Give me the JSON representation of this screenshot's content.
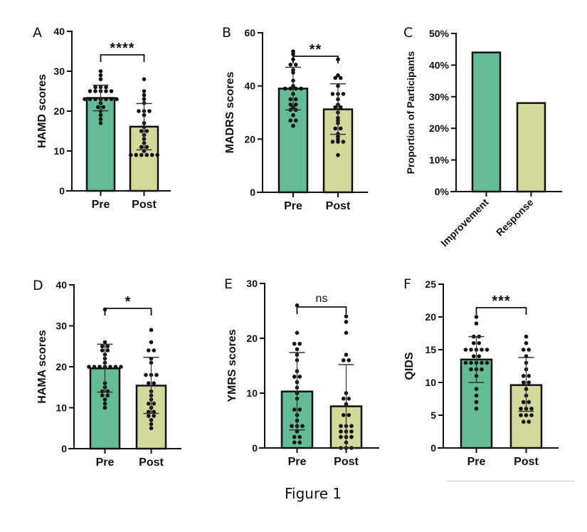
{
  "figure": {
    "caption": "Figure 1",
    "colors": {
      "pre": "#63bc95",
      "post": "#d4d89a",
      "outline": "#111111"
    }
  },
  "chart_data": [
    {
      "panel": "A",
      "type": "bar",
      "ylabel": "HAMD scores",
      "categories": [
        "Pre",
        "Post"
      ],
      "yticks": [
        0,
        10,
        20,
        30,
        40
      ],
      "ylim": [
        0,
        40
      ],
      "means": [
        23.3,
        16.1
      ],
      "sd_lower": [
        20.1,
        10.3
      ],
      "sd_upper": [
        26.5,
        21.9
      ],
      "significance": "****",
      "points": [
        [
          30,
          29,
          28,
          26,
          26,
          26,
          25,
          25,
          25,
          25,
          25,
          23,
          23,
          23,
          23,
          23,
          23,
          23,
          22,
          21,
          21,
          20,
          19,
          18,
          17
        ],
        [
          28,
          25,
          24,
          23,
          22,
          20,
          20,
          20,
          19,
          17,
          16,
          15,
          15,
          14,
          13,
          12,
          11,
          11,
          10,
          9,
          9,
          9,
          9,
          9,
          9
        ]
      ]
    },
    {
      "panel": "B",
      "type": "bar",
      "ylabel": "MADRS scores",
      "categories": [
        "Pre",
        "Post"
      ],
      "yticks": [
        0,
        20,
        40,
        60
      ],
      "ylim": [
        0,
        60
      ],
      "means": [
        39,
        31.2
      ],
      "sd_lower": [
        31,
        21.8
      ],
      "sd_upper": [
        47,
        40.8
      ],
      "significance": "**",
      "points": [
        [
          53,
          52,
          50,
          48,
          48,
          46,
          45,
          42,
          40,
          39,
          39,
          39,
          39,
          37,
          35,
          35,
          33,
          33,
          32,
          31,
          31,
          29,
          27,
          27,
          25
        ],
        [
          50,
          44,
          43,
          43,
          40,
          37,
          37,
          37,
          35,
          33,
          32,
          32,
          30,
          28,
          27,
          26,
          24,
          24,
          22,
          21,
          20,
          19,
          19,
          19,
          14
        ]
      ]
    },
    {
      "panel": "C",
      "type": "bar",
      "ylabel": "Proportion of Participants",
      "categories": [
        "Improvement",
        "Response"
      ],
      "yticks": [
        "0%",
        "10%",
        "20%",
        "30%",
        "40%",
        "50%"
      ],
      "ylim": [
        0,
        50
      ],
      "values": [
        44,
        28
      ]
    },
    {
      "panel": "D",
      "type": "bar",
      "ylabel": "HAMA scores",
      "categories": [
        "Pre",
        "Post"
      ],
      "yticks": [
        0,
        10,
        20,
        30,
        40
      ],
      "ylim": [
        0,
        40
      ],
      "means": [
        19.6,
        15.4
      ],
      "sd_lower": [
        13.8,
        8.6
      ],
      "sd_upper": [
        25.5,
        22.3
      ],
      "significance": "*",
      "points": [
        [
          34,
          26,
          25,
          25,
          24,
          24,
          23,
          22,
          21,
          20,
          20,
          20,
          20,
          20,
          20,
          20,
          16,
          15,
          14,
          14,
          13,
          13,
          12,
          11,
          10
        ],
        [
          29,
          26,
          24,
          24,
          22,
          21,
          18,
          18,
          18,
          16,
          16,
          14,
          13,
          12,
          11,
          11,
          10,
          9,
          9,
          8,
          8,
          7,
          6,
          5
        ]
      ]
    },
    {
      "panel": "E",
      "type": "bar",
      "ylabel": "YMRS scores",
      "categories": [
        "Pre",
        "Post"
      ],
      "yticks": [
        0,
        10,
        20,
        30
      ],
      "ylim": [
        0,
        30
      ],
      "means": [
        10.3,
        7.6
      ],
      "sd_lower": [
        3.3,
        0
      ],
      "sd_upper": [
        17.4,
        15.2
      ],
      "significance": "ns",
      "points": [
        [
          26,
          21,
          19,
          19,
          18,
          17,
          16,
          14,
          13,
          13,
          12,
          11,
          10,
          9,
          7,
          7,
          6,
          5,
          4,
          4,
          4,
          3,
          2,
          2,
          1,
          1
        ],
        [
          24,
          23,
          21,
          17,
          16,
          16,
          10,
          9,
          9,
          8,
          6,
          6,
          4,
          4,
          4,
          3,
          3,
          3,
          2,
          2,
          2,
          1,
          0,
          0,
          0
        ]
      ]
    },
    {
      "panel": "F",
      "type": "bar",
      "ylabel": "QIDS",
      "categories": [
        "Pre",
        "Post"
      ],
      "yticks": [
        0,
        5,
        10,
        15,
        20,
        25
      ],
      "ylim": [
        0,
        25
      ],
      "means": [
        13.5,
        9.6
      ],
      "sd_lower": [
        10,
        5.6
      ],
      "sd_upper": [
        17,
        13.8
      ],
      "significance": "***",
      "points": [
        [
          20,
          19,
          17,
          17,
          16,
          16,
          15,
          15,
          15,
          15,
          15,
          14,
          14,
          13,
          13,
          13,
          13,
          13,
          12,
          12,
          12,
          11,
          9,
          8,
          7,
          6
        ],
        [
          17,
          16,
          15,
          15,
          14,
          13,
          12,
          11,
          11,
          10,
          10,
          9,
          8,
          7,
          7,
          6,
          6,
          6,
          5,
          5,
          5,
          4,
          4
        ]
      ]
    }
  ]
}
